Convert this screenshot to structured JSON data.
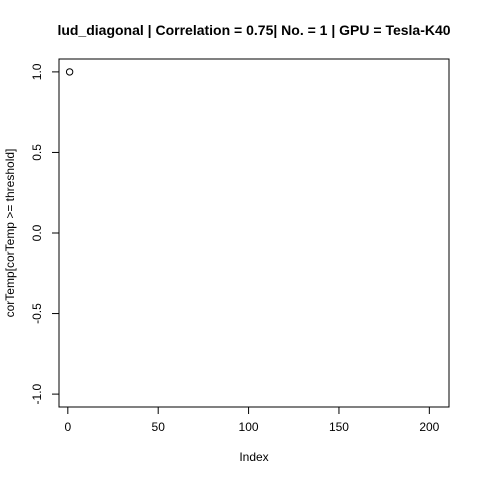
{
  "chart_data": {
    "type": "scatter",
    "title": "lud_diagonal | Correlation = 0.75| No. = 1 | GPU = Tesla-K40",
    "xlabel": "Index",
    "ylabel": "corTemp[corTemp >= threshold]",
    "xlim": [
      -4.88,
      210.88
    ],
    "ylim": [
      -1.08,
      1.08
    ],
    "x_ticks": [
      0,
      50,
      100,
      150,
      200
    ],
    "x_tick_labels": [
      "0",
      "50",
      "100",
      "150",
      "200"
    ],
    "y_ticks": [
      -1.0,
      -0.5,
      0.0,
      0.5,
      1.0
    ],
    "y_tick_labels": [
      "-1.0",
      "-0.5",
      "0.0",
      "0.5",
      "1.0"
    ],
    "points": [
      {
        "x": 1,
        "y": 1.0
      }
    ],
    "marker": "open-circle",
    "grid": false,
    "legend": "none"
  }
}
